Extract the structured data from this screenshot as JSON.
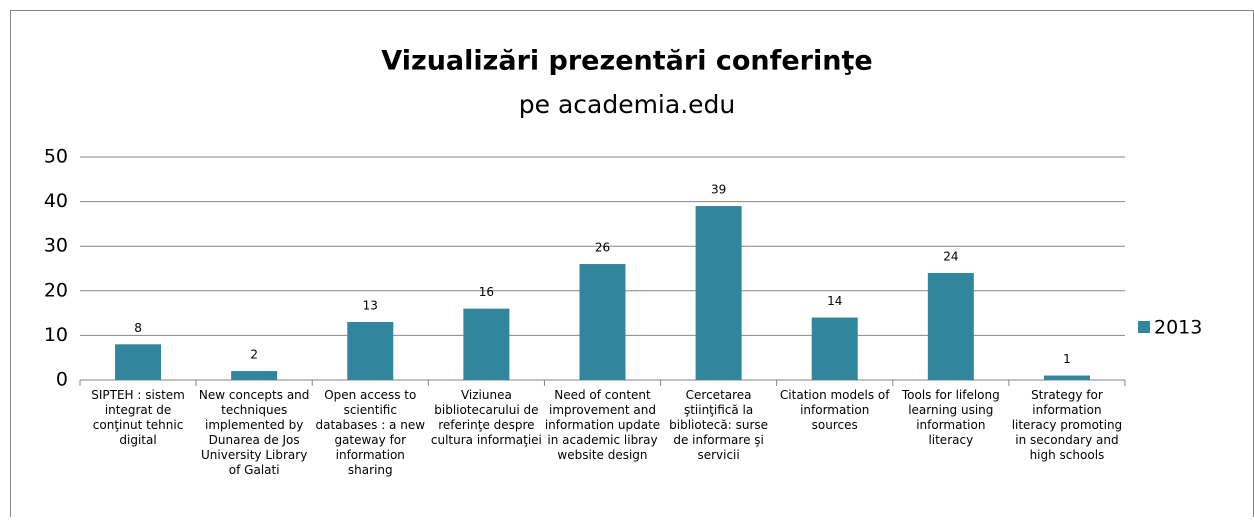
{
  "chart_data": {
    "type": "bar",
    "title": "Vizualizări prezentări conferinţe",
    "subtitle": "pe academia.edu",
    "categories": [
      "SIPTEH : sistem integrat de conţinut tehnic digital",
      "New concepts and techniques implemented by Dunarea de Jos University Library of Galati",
      "Open access to scientific databases : a new gateway for information sharing",
      "Viziunea bibliotecarului de referinţe despre cultura informaţiei",
      "Need of content improvement and information update in academic libray website design",
      "Cercetarea ştiinţifică la bibliotecă: surse de informare şi servicii",
      "Citation models of information sources",
      "Tools for lifelong learning using information literacy",
      "Strategy for information literacy promoting in secondary and high schools"
    ],
    "series": [
      {
        "name": "2013",
        "color": "#31859c",
        "values": [
          8,
          2,
          13,
          16,
          26,
          39,
          14,
          24,
          1
        ]
      }
    ],
    "ylim": [
      0,
      50
    ],
    "yticks": [
      0,
      10,
      20,
      30,
      40,
      50
    ],
    "grid": true,
    "legend": "right"
  }
}
